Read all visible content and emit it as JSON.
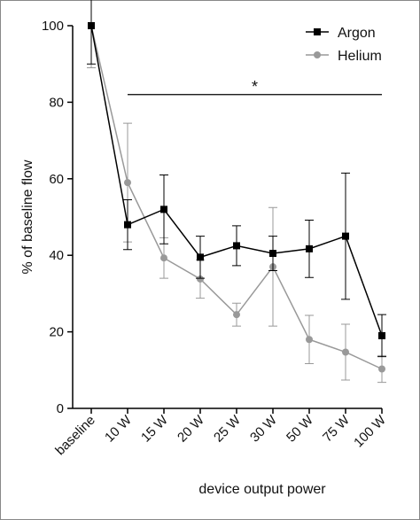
{
  "chart_data": {
    "type": "line",
    "x_label": "device output power",
    "y_label": "% of baseline flow",
    "categories": [
      "baseline",
      "10 W",
      "15 W",
      "20 W",
      "25 W",
      "30 W",
      "50 W",
      "75 W",
      "100 W"
    ],
    "series": [
      {
        "name": "Argon",
        "color": "#000000",
        "marker": "square",
        "values": [
          100,
          48,
          52,
          39.5,
          42.5,
          40.5,
          41.7,
          45,
          19
        ],
        "errors": [
          10,
          6.5,
          9,
          5.5,
          5.2,
          4.5,
          7.5,
          16.5,
          5.5
        ]
      },
      {
        "name": "Helium",
        "color": "#999999",
        "marker": "circle",
        "values": [
          100,
          59,
          39.3,
          33.8,
          24.5,
          37,
          18,
          14.7,
          10.3
        ],
        "errors": [
          11,
          15.5,
          5.3,
          5,
          3,
          15.5,
          6.3,
          7.3,
          3.5
        ]
      }
    ],
    "annotation": {
      "text": "*",
      "y": 82
    },
    "ylim": [
      0,
      100
    ],
    "yticks": [
      0,
      20,
      40,
      60,
      80,
      100
    ],
    "legend": "upper right"
  }
}
